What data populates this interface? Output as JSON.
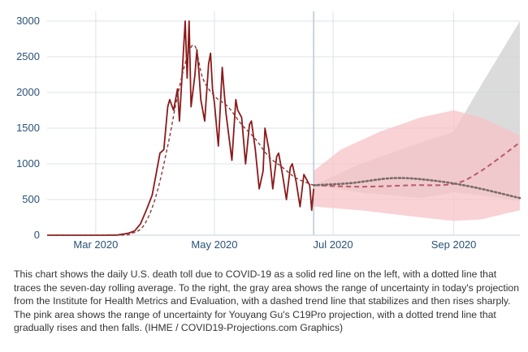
{
  "chart_data": {
    "type": "line",
    "x_axis": {
      "unit": "date",
      "range": [
        "2020-02-05",
        "2020-10-05"
      ],
      "ticks": [
        {
          "date": "2020-03-01",
          "label": "Mar 2020"
        },
        {
          "date": "2020-05-01",
          "label": "May 2020"
        },
        {
          "date": "2020-07-01",
          "label": "Jul 2020"
        },
        {
          "date": "2020-09-01",
          "label": "Sep 2020"
        }
      ]
    },
    "y_axis": {
      "range": [
        0,
        3000
      ],
      "ticks": [
        0,
        500,
        1000,
        1500,
        2000,
        2500,
        3000
      ]
    },
    "grid": true,
    "projection_start": "2020-06-21",
    "colors": {
      "daily": "#8b1a1a",
      "rolling": "#8b3a3a",
      "ihme_band": "#d5d5d5",
      "ihme_trend": "#b85a6a",
      "c19_band": "#f7c3c7",
      "c19_trend": "#7a6a6a",
      "grid": "#dde3ea",
      "axis_text": "#2a5178",
      "projection_line": "#b9c7d3"
    },
    "series": [
      {
        "id": "daily",
        "points": [
          [
            "2020-02-05",
            0
          ],
          [
            "2020-02-20",
            0
          ],
          [
            "2020-03-05",
            0
          ],
          [
            "2020-03-12",
            2
          ],
          [
            "2020-03-15",
            15
          ],
          [
            "2020-03-18",
            30
          ],
          [
            "2020-03-21",
            60
          ],
          [
            "2020-03-24",
            160
          ],
          [
            "2020-03-27",
            350
          ],
          [
            "2020-03-30",
            560
          ],
          [
            "2020-04-01",
            850
          ],
          [
            "2020-04-03",
            1150
          ],
          [
            "2020-04-05",
            1200
          ],
          [
            "2020-04-07",
            1800
          ],
          [
            "2020-04-08",
            1900
          ],
          [
            "2020-04-10",
            1750
          ],
          [
            "2020-04-12",
            2050
          ],
          [
            "2020-04-13",
            1600
          ],
          [
            "2020-04-15",
            2550
          ],
          [
            "2020-04-16",
            3000
          ],
          [
            "2020-04-17",
            2200
          ],
          [
            "2020-04-18",
            3000
          ],
          [
            "2020-04-19",
            1800
          ],
          [
            "2020-04-21",
            2250
          ],
          [
            "2020-04-22",
            2600
          ],
          [
            "2020-04-23",
            2300
          ],
          [
            "2020-04-24",
            1900
          ],
          [
            "2020-04-26",
            1600
          ],
          [
            "2020-04-28",
            2400
          ],
          [
            "2020-04-29",
            2550
          ],
          [
            "2020-04-30",
            2050
          ],
          [
            "2020-05-01",
            1850
          ],
          [
            "2020-05-03",
            1250
          ],
          [
            "2020-05-05",
            2350
          ],
          [
            "2020-05-06",
            2000
          ],
          [
            "2020-05-07",
            1700
          ],
          [
            "2020-05-10",
            1050
          ],
          [
            "2020-05-12",
            1900
          ],
          [
            "2020-05-13",
            1750
          ],
          [
            "2020-05-15",
            1650
          ],
          [
            "2020-05-17",
            1000
          ],
          [
            "2020-05-19",
            1550
          ],
          [
            "2020-05-20",
            1600
          ],
          [
            "2020-05-22",
            1200
          ],
          [
            "2020-05-24",
            650
          ],
          [
            "2020-05-26",
            900
          ],
          [
            "2020-05-27",
            1500
          ],
          [
            "2020-05-29",
            1200
          ],
          [
            "2020-05-31",
            650
          ],
          [
            "2020-06-02",
            1100
          ],
          [
            "2020-06-03",
            1150
          ],
          [
            "2020-06-05",
            850
          ],
          [
            "2020-06-07",
            500
          ],
          [
            "2020-06-09",
            950
          ],
          [
            "2020-06-10",
            1000
          ],
          [
            "2020-06-12",
            750
          ],
          [
            "2020-06-14",
            400
          ],
          [
            "2020-06-16",
            850
          ],
          [
            "2020-06-17",
            800
          ],
          [
            "2020-06-19",
            700
          ],
          [
            "2020-06-20",
            350
          ],
          [
            "2020-06-21",
            650
          ]
        ]
      },
      {
        "id": "rolling",
        "points": [
          [
            "2020-02-05",
            0
          ],
          [
            "2020-03-12",
            0
          ],
          [
            "2020-03-20",
            30
          ],
          [
            "2020-03-26",
            150
          ],
          [
            "2020-04-01",
            550
          ],
          [
            "2020-04-07",
            1250
          ],
          [
            "2020-04-12",
            1950
          ],
          [
            "2020-04-17",
            2500
          ],
          [
            "2020-04-21",
            2650
          ],
          [
            "2020-04-25",
            2200
          ],
          [
            "2020-05-01",
            1950
          ],
          [
            "2020-05-08",
            1800
          ],
          [
            "2020-05-15",
            1550
          ],
          [
            "2020-05-22",
            1350
          ],
          [
            "2020-05-29",
            1100
          ],
          [
            "2020-06-05",
            950
          ],
          [
            "2020-06-12",
            800
          ],
          [
            "2020-06-21",
            700
          ]
        ]
      },
      {
        "id": "ihme_band",
        "upper": [
          [
            "2020-06-21",
            700
          ],
          [
            "2020-07-15",
            1000
          ],
          [
            "2020-08-15",
            1300
          ],
          [
            "2020-09-01",
            1450
          ],
          [
            "2020-09-15",
            2100
          ],
          [
            "2020-10-05",
            3000
          ]
        ],
        "lower": [
          [
            "2020-06-21",
            700
          ],
          [
            "2020-07-15",
            600
          ],
          [
            "2020-08-15",
            520
          ],
          [
            "2020-09-01",
            600
          ],
          [
            "2020-09-15",
            560
          ],
          [
            "2020-10-05",
            480
          ]
        ]
      },
      {
        "id": "ihme_trend",
        "points": [
          [
            "2020-06-21",
            700
          ],
          [
            "2020-07-15",
            680
          ],
          [
            "2020-08-10",
            700
          ],
          [
            "2020-09-01",
            720
          ],
          [
            "2020-09-15",
            900
          ],
          [
            "2020-10-05",
            1300
          ]
        ]
      },
      {
        "id": "c19_band",
        "upper": [
          [
            "2020-06-21",
            900
          ],
          [
            "2020-07-05",
            1200
          ],
          [
            "2020-07-25",
            1450
          ],
          [
            "2020-08-15",
            1650
          ],
          [
            "2020-09-01",
            1750
          ],
          [
            "2020-09-15",
            1650
          ],
          [
            "2020-10-05",
            1400
          ]
        ],
        "lower": [
          [
            "2020-06-21",
            400
          ],
          [
            "2020-07-15",
            350
          ],
          [
            "2020-08-15",
            250
          ],
          [
            "2020-09-01",
            200
          ],
          [
            "2020-09-15",
            220
          ],
          [
            "2020-10-05",
            350
          ]
        ]
      },
      {
        "id": "c19_trend",
        "points": [
          [
            "2020-06-21",
            700
          ],
          [
            "2020-07-10",
            730
          ],
          [
            "2020-08-01",
            800
          ],
          [
            "2020-08-20",
            770
          ],
          [
            "2020-09-10",
            680
          ],
          [
            "2020-10-05",
            520
          ]
        ]
      }
    ]
  },
  "caption": "This chart shows the daily U.S. death toll due to COVID-19 as a solid red line on the left, with a dotted line that traces the seven-day rolling average. To the right, the gray area shows the range of uncertainty in today's projection from the Institute for Health Metrics and Evaluation, with a dashed trend line that stabilizes and then rises sharply. The pink area shows the range of uncertainty for Youyang Gu's C19Pro projection, with a dotted trend line that gradually rises and then falls. (IHME / COVID19-Projections.com Graphics)"
}
